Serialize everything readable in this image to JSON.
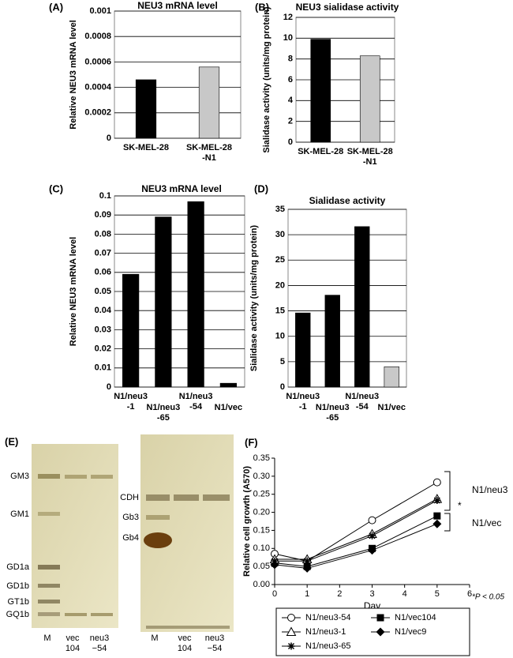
{
  "chart_data": [
    {
      "type": "bar",
      "label": "(A)",
      "title": "NEU3 mRNA level",
      "y_label": "Relative NEU3 mRNA level",
      "categories": [
        "SK-MEL-28",
        "SK-MEL-28\n-N1"
      ],
      "values": [
        0.00046,
        0.00056
      ],
      "colors": [
        "#000000",
        "#c8c8c8"
      ],
      "ylim": [
        0,
        0.001
      ],
      "yticks": [
        0,
        0.0002,
        0.0004,
        0.0006,
        0.0008,
        0.001
      ],
      "grid": true
    },
    {
      "type": "bar",
      "label": "(B)",
      "title": "NEU3 sialidase activity",
      "y_label": "Sialidase activity (units/mg protein)",
      "categories": [
        "SK-MEL-28",
        "SK-MEL-28\n-N1"
      ],
      "values": [
        9.9,
        8.3
      ],
      "colors": [
        "#000000",
        "#c8c8c8"
      ],
      "ylim": [
        0,
        12
      ],
      "yticks": [
        0,
        2,
        4,
        6,
        8,
        10,
        12
      ],
      "grid": true
    },
    {
      "type": "bar",
      "label": "(C)",
      "title": "NEU3 mRNA level",
      "y_label": "Relative NEU3 mRNA level",
      "categories": [
        "N1/neu3\n-1",
        "N1/neu3\n-65",
        "N1/neu3\n-54",
        "N1/vec"
      ],
      "values": [
        0.059,
        0.089,
        0.097,
        0.002
      ],
      "colors": [
        "#000000",
        "#000000",
        "#000000",
        "#000000"
      ],
      "ylim": [
        0,
        0.1
      ],
      "yticks": [
        0,
        0.01,
        0.02,
        0.03,
        0.04,
        0.05,
        0.06,
        0.07,
        0.08,
        0.09,
        0.1
      ],
      "grid": true
    },
    {
      "type": "bar",
      "label": "(D)",
      "title": "Sialidase activity",
      "y_label": "Sialidase activity (units/mg protein)",
      "categories": [
        "N1/neu3\n-1",
        "N1/neu3\n-65",
        "N1/neu3\n-54",
        "N1/vec"
      ],
      "values": [
        14.6,
        18.1,
        31.6,
        4.0
      ],
      "colors": [
        "#000000",
        "#000000",
        "#000000",
        "#c8c8c8"
      ],
      "ylim": [
        0,
        35
      ],
      "yticks": [
        0,
        5,
        10,
        15,
        20,
        25,
        30,
        35
      ],
      "grid": true
    },
    {
      "type": "line",
      "label": "(F)",
      "x_label": "Day",
      "y_label": "Relative cell growth (A570)",
      "x": [
        0,
        1,
        3,
        5
      ],
      "xlim": [
        0,
        6
      ],
      "xticks": [
        0,
        1,
        2,
        3,
        4,
        5,
        6
      ],
      "ylim": [
        0,
        0.35
      ],
      "yticks": [
        {
          "value": 0,
          "label": "0.00"
        },
        {
          "value": 0.05,
          "label": "0.05"
        },
        {
          "value": 0.1,
          "label": "0.10"
        },
        {
          "value": 0.15,
          "label": "0.15"
        },
        {
          "value": 0.2,
          "label": "0.20"
        },
        {
          "value": 0.25,
          "label": "0.25"
        },
        {
          "value": 0.3,
          "label": "0.30"
        },
        {
          "value": 0.35,
          "label": "0.35"
        }
      ],
      "series": [
        {
          "name": "N1/neu3-54",
          "color": "#000000",
          "marker": "circle",
          "values": [
            0.085,
            0.065,
            0.178,
            0.283
          ]
        },
        {
          "name": "N1/vec104",
          "color": "#000000",
          "marker": "square",
          "values": [
            0.06,
            0.05,
            0.1,
            0.19
          ]
        },
        {
          "name": "N1/neu3-1",
          "color": "#000000",
          "marker": "triangle",
          "values": [
            0.07,
            0.07,
            0.14,
            0.237
          ]
        },
        {
          "name": "N1/vec9",
          "color": "#000000",
          "marker": "diamond",
          "values": [
            0.055,
            0.045,
            0.095,
            0.168
          ]
        },
        {
          "name": "N1/neu3-65",
          "color": "#000000",
          "marker": "star",
          "values": [
            0.065,
            0.065,
            0.135,
            0.233
          ]
        }
      ],
      "annotations": [
        "N1/neu3",
        "N1/vec",
        "*",
        "*P < 0.05"
      ]
    }
  ],
  "panel_e": {
    "label": "(E)",
    "left_bands": [
      "GM3",
      "GM1",
      "GD1a",
      "GD1b",
      "GT1b",
      "GQ1b"
    ],
    "right_bands": [
      "CDH",
      "Gb3",
      "Gb4"
    ],
    "lanes": [
      "M",
      "vec\n104",
      "neu3\n−54"
    ]
  }
}
